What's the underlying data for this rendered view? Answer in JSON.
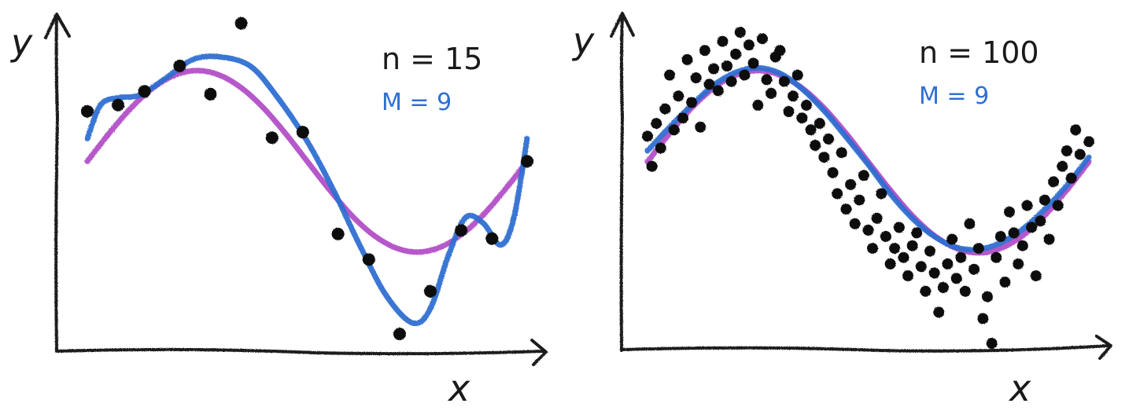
{
  "colors": {
    "true_curve": "#b04ac6",
    "fit_curve": "#2f6fd1",
    "points": "#111111",
    "axes": "#1a1a1a"
  },
  "chart_data": [
    {
      "type": "line",
      "xlabel": "x",
      "ylabel": "y",
      "xlim": [
        0,
        1
      ],
      "ylim": [
        -1.9,
        1.3
      ],
      "grid": false,
      "annotations": {
        "n_label": "n = 15",
        "m_label": "M = 9"
      },
      "true_function": "sin(2πx)",
      "series": [
        {
          "role": "true-curve",
          "x": [
            0.0,
            0.05,
            0.1,
            0.15,
            0.2,
            0.25,
            0.3,
            0.35,
            0.4,
            0.45,
            0.5,
            0.55,
            0.6,
            0.65,
            0.7,
            0.75,
            0.8,
            0.85,
            0.9,
            0.95,
            1.0
          ],
          "y": [
            0.0,
            0.31,
            0.59,
            0.81,
            0.95,
            1.0,
            0.95,
            0.81,
            0.59,
            0.31,
            0.0,
            -0.31,
            -0.59,
            -0.81,
            -0.95,
            -1.0,
            -0.95,
            -0.81,
            -0.59,
            -0.31,
            0.0
          ]
        },
        {
          "role": "fit-curve",
          "x": [
            0.0,
            0.03,
            0.07,
            0.12,
            0.18,
            0.24,
            0.3,
            0.37,
            0.43,
            0.5,
            0.56,
            0.62,
            0.68,
            0.74,
            0.78,
            0.82,
            0.86,
            0.9,
            0.94,
            0.97,
            1.0
          ],
          "y": [
            0.25,
            0.62,
            0.7,
            0.73,
            0.92,
            1.12,
            1.15,
            1.05,
            0.72,
            0.22,
            -0.32,
            -0.93,
            -1.48,
            -1.78,
            -1.62,
            -1.05,
            -0.62,
            -0.68,
            -0.92,
            -0.62,
            0.25
          ]
        }
      ],
      "points": {
        "x": [
          0.0,
          0.07,
          0.13,
          0.21,
          0.28,
          0.35,
          0.42,
          0.49,
          0.57,
          0.64,
          0.71,
          0.78,
          0.85,
          0.92,
          1.0
        ],
        "y": [
          0.55,
          0.62,
          0.77,
          1.05,
          0.74,
          1.52,
          0.26,
          0.32,
          -0.8,
          -1.08,
          -1.98,
          -1.43,
          -0.76,
          -0.85,
          0.0
        ]
      }
    },
    {
      "type": "line",
      "xlabel": "x",
      "ylabel": "y",
      "xlim": [
        0,
        1
      ],
      "ylim": [
        -2.0,
        1.3
      ],
      "grid": false,
      "annotations": {
        "n_label": "n = 100",
        "m_label": "M = 9"
      },
      "true_function": "sin(2πx)",
      "series": [
        {
          "role": "true-curve",
          "x": [
            0.0,
            0.05,
            0.1,
            0.15,
            0.2,
            0.25,
            0.3,
            0.35,
            0.4,
            0.45,
            0.5,
            0.55,
            0.6,
            0.65,
            0.7,
            0.75,
            0.8,
            0.85,
            0.9,
            0.95,
            1.0
          ],
          "y": [
            0.0,
            0.31,
            0.59,
            0.81,
            0.95,
            1.0,
            0.95,
            0.81,
            0.59,
            0.31,
            0.0,
            -0.31,
            -0.59,
            -0.81,
            -0.95,
            -1.0,
            -0.95,
            -0.81,
            -0.59,
            -0.31,
            0.0
          ]
        },
        {
          "role": "fit-curve",
          "x": [
            0.0,
            0.05,
            0.1,
            0.15,
            0.2,
            0.25,
            0.3,
            0.35,
            0.4,
            0.45,
            0.5,
            0.55,
            0.6,
            0.65,
            0.7,
            0.75,
            0.8,
            0.85,
            0.9,
            0.95,
            1.0
          ],
          "y": [
            0.12,
            0.38,
            0.62,
            0.84,
            0.98,
            1.03,
            0.97,
            0.8,
            0.56,
            0.27,
            -0.03,
            -0.35,
            -0.62,
            -0.82,
            -0.94,
            -0.96,
            -0.89,
            -0.74,
            -0.52,
            -0.26,
            0.05
          ]
        }
      ],
      "points": {
        "x": [
          0.0,
          0.01,
          0.02,
          0.03,
          0.04,
          0.05,
          0.06,
          0.07,
          0.08,
          0.09,
          0.1,
          0.11,
          0.12,
          0.13,
          0.14,
          0.15,
          0.16,
          0.17,
          0.18,
          0.19,
          0.2,
          0.21,
          0.22,
          0.23,
          0.24,
          0.25,
          0.26,
          0.27,
          0.28,
          0.29,
          0.3,
          0.31,
          0.32,
          0.33,
          0.34,
          0.35,
          0.36,
          0.37,
          0.38,
          0.39,
          0.4,
          0.41,
          0.42,
          0.43,
          0.44,
          0.45,
          0.46,
          0.47,
          0.48,
          0.49,
          0.5,
          0.51,
          0.52,
          0.53,
          0.54,
          0.55,
          0.56,
          0.57,
          0.58,
          0.59,
          0.6,
          0.61,
          0.62,
          0.63,
          0.64,
          0.65,
          0.66,
          0.67,
          0.68,
          0.69,
          0.7,
          0.71,
          0.72,
          0.73,
          0.74,
          0.75,
          0.76,
          0.77,
          0.78,
          0.79,
          0.8,
          0.81,
          0.82,
          0.83,
          0.84,
          0.85,
          0.86,
          0.87,
          0.88,
          0.89,
          0.9,
          0.91,
          0.92,
          0.93,
          0.94,
          0.95,
          0.96,
          0.97,
          0.98,
          1.0
        ],
        "y": [
          0.28,
          -0.05,
          0.42,
          0.15,
          0.58,
          0.95,
          0.35,
          0.72,
          0.48,
          1.12,
          0.65,
          0.92,
          0.38,
          1.22,
          0.85,
          1.02,
          0.78,
          1.32,
          1.05,
          0.88,
          1.18,
          1.42,
          0.95,
          1.28,
          1.08,
          0.62,
          1.35,
          0.9,
          0.75,
          1.15,
          1.22,
          0.88,
          0.55,
          0.72,
          0.95,
          0.48,
          0.62,
          0.35,
          0.18,
          0.42,
          0.05,
          0.25,
          -0.12,
          -0.35,
          0.1,
          -0.52,
          -0.25,
          -0.68,
          -0.42,
          -0.15,
          -0.75,
          -0.95,
          -0.62,
          -0.35,
          -0.82,
          -1.12,
          -0.95,
          -0.72,
          -1.05,
          -1.25,
          -0.92,
          -0.78,
          -1.15,
          -1.42,
          -0.98,
          -1.22,
          -1.65,
          -1.38,
          -1.12,
          -0.85,
          -1.28,
          -1.05,
          -1.42,
          -0.68,
          -1.18,
          -0.95,
          -1.72,
          -1.48,
          -2.25,
          -1.05,
          -0.82,
          -1.32,
          -0.55,
          -0.78,
          -1.12,
          -0.92,
          -0.48,
          -0.72,
          -1.25,
          -0.65,
          -0.42,
          -0.85,
          -0.22,
          -0.48,
          -0.05,
          0.12,
          -0.18,
          0.35,
          0.08,
          0.22
        ]
      }
    }
  ]
}
